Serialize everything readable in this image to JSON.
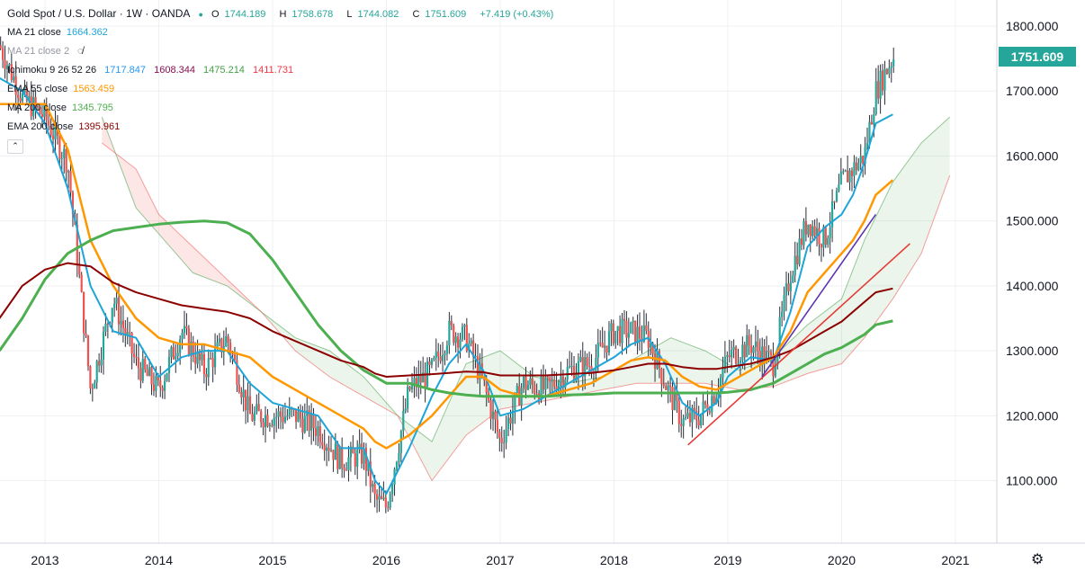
{
  "header": {
    "symbol_title": "Gold Spot / U.S. Dollar · 1W · OANDA",
    "ohlc": {
      "open_label": "O",
      "open": "1744.189",
      "high_label": "H",
      "high": "1758.678",
      "low_label": "L",
      "low": "1744.082",
      "close_label": "C",
      "close": "1751.609",
      "change": "+7.419 (+0.43%)"
    }
  },
  "indicators": [
    {
      "label": "MA 21 close",
      "values": [
        "1664.362"
      ],
      "colors": [
        "#1ca5d8"
      ]
    },
    {
      "label": "MA 21 close 2",
      "values": [],
      "colors": []
    },
    {
      "label": "Ichimoku 9 26 52 26",
      "values": [
        "1717.847",
        "1608.344",
        "1475.214",
        "1411.731"
      ],
      "colors": [
        "#2196f3",
        "#880e4f",
        "#43a047",
        "#f23645"
      ]
    },
    {
      "label": "EMA 55 close",
      "values": [
        "1563.459"
      ],
      "colors": [
        "#ff9800"
      ]
    },
    {
      "label": "MA 200 close",
      "values": [
        "1345.795"
      ],
      "colors": [
        "#4caf50"
      ]
    },
    {
      "label": "EMA 200 close",
      "values": [
        "1395.961"
      ],
      "colors": [
        "#8b0000"
      ]
    }
  ],
  "last_price_tag": "1751.609",
  "icons": {
    "settings": "gear-icon",
    "visibility": "eye-off-icon"
  },
  "chart_data": {
    "type": "line",
    "title": "Gold Spot / U.S. Dollar · 1W · OANDA",
    "xlabel": "",
    "ylabel": "",
    "ylim": [
      975,
      1830
    ],
    "x_ticks": [
      "2013",
      "2014",
      "2015",
      "2016",
      "2017",
      "2018",
      "2019",
      "2020",
      "2021"
    ],
    "y_ticks": [
      "1100.000",
      "1200.000",
      "1300.000",
      "1400.000",
      "1500.000",
      "1600.000",
      "1700.000",
      "1800.000"
    ],
    "grid": true,
    "colors": {
      "up": "#26a69a",
      "down": "#ef5350",
      "ma21": "#1ca5d8",
      "ema55": "#ff9800",
      "ma200": "#4caf50",
      "ema200": "#8b0000",
      "trend_red": "#e53935",
      "trend_purple": "#5e35b1",
      "cloud_green": "#43a047",
      "cloud_red": "#ef5350"
    },
    "x": [
      2012.6,
      2012.8,
      2013.0,
      2013.2,
      2013.4,
      2013.6,
      2013.8,
      2014.0,
      2014.2,
      2014.4,
      2014.6,
      2014.8,
      2015.0,
      2015.2,
      2015.4,
      2015.6,
      2015.8,
      2015.9,
      2016.0,
      2016.2,
      2016.4,
      2016.55,
      2016.7,
      2016.85,
      2017.0,
      2017.2,
      2017.4,
      2017.6,
      2017.8,
      2018.0,
      2018.15,
      2018.3,
      2018.45,
      2018.6,
      2018.75,
      2018.9,
      2019.0,
      2019.2,
      2019.4,
      2019.55,
      2019.7,
      2019.85,
      2020.0,
      2020.1,
      2020.2,
      2020.3,
      2020.45
    ],
    "series": [
      {
        "name": "Price",
        "values": [
          1770,
          1690,
          1660,
          1590,
          1240,
          1380,
          1280,
          1240,
          1330,
          1270,
          1320,
          1200,
          1200,
          1200,
          1180,
          1130,
          1140,
          1070,
          1060,
          1240,
          1270,
          1330,
          1320,
          1250,
          1160,
          1250,
          1240,
          1270,
          1280,
          1330,
          1330,
          1320,
          1250,
          1190,
          1200,
          1240,
          1290,
          1310,
          1280,
          1420,
          1500,
          1470,
          1560,
          1580,
          1600,
          1700,
          1752
        ]
      },
      {
        "name": "MA 21 close",
        "values": [
          1720,
          1700,
          1650,
          1550,
          1400,
          1330,
          1320,
          1260,
          1290,
          1300,
          1300,
          1250,
          1220,
          1210,
          1200,
          1150,
          1150,
          1100,
          1080,
          1150,
          1230,
          1280,
          1310,
          1270,
          1200,
          1210,
          1230,
          1250,
          1270,
          1290,
          1310,
          1320,
          1280,
          1220,
          1200,
          1220,
          1260,
          1290,
          1285,
          1360,
          1460,
          1490,
          1510,
          1540,
          1590,
          1650,
          1664
        ]
      },
      {
        "name": "EMA 55 close",
        "values": [
          1680,
          1680,
          1680,
          1610,
          1470,
          1400,
          1350,
          1320,
          1310,
          1310,
          1300,
          1290,
          1260,
          1240,
          1220,
          1200,
          1180,
          1160,
          1150,
          1170,
          1200,
          1230,
          1260,
          1260,
          1240,
          1230,
          1230,
          1240,
          1250,
          1270,
          1285,
          1290,
          1285,
          1260,
          1245,
          1240,
          1250,
          1270,
          1290,
          1330,
          1390,
          1420,
          1450,
          1470,
          1500,
          1540,
          1563
        ]
      },
      {
        "name": "MA 200 close",
        "values": [
          1300,
          1350,
          1410,
          1450,
          1470,
          1485,
          1490,
          1495,
          1498,
          1500,
          1497,
          1480,
          1440,
          1390,
          1340,
          1300,
          1270,
          1260,
          1250,
          1250,
          1240,
          1235,
          1232,
          1230,
          1230,
          1230,
          1230,
          1232,
          1233,
          1235,
          1235,
          1235,
          1235,
          1235,
          1235,
          1235,
          1236,
          1240,
          1250,
          1265,
          1280,
          1295,
          1305,
          1315,
          1325,
          1340,
          1346
        ]
      },
      {
        "name": "EMA 200 close",
        "values": [
          1350,
          1400,
          1425,
          1435,
          1430,
          1405,
          1390,
          1380,
          1370,
          1365,
          1360,
          1350,
          1330,
          1315,
          1300,
          1285,
          1275,
          1265,
          1260,
          1262,
          1264,
          1266,
          1268,
          1267,
          1262,
          1262,
          1262,
          1264,
          1266,
          1270,
          1275,
          1280,
          1280,
          1275,
          1272,
          1272,
          1275,
          1280,
          1290,
          1300,
          1315,
          1330,
          1345,
          1360,
          1375,
          1390,
          1396
        ]
      }
    ],
    "cloud": {
      "x": [
        2013.5,
        2013.8,
        2014.0,
        2014.3,
        2014.6,
        2014.9,
        2015.2,
        2015.5,
        2015.8,
        2016.1,
        2016.4,
        2016.7,
        2017.0,
        2017.3,
        2017.6,
        2017.9,
        2018.2,
        2018.5,
        2018.8,
        2019.1,
        2019.4,
        2019.7,
        2020.0,
        2020.2,
        2020.45,
        2020.7,
        2020.95
      ],
      "span_a": [
        1660,
        1520,
        1480,
        1420,
        1400,
        1360,
        1320,
        1300,
        1260,
        1200,
        1160,
        1280,
        1300,
        1260,
        1250,
        1260,
        1290,
        1320,
        1300,
        1270,
        1290,
        1340,
        1380,
        1470,
        1560,
        1620,
        1660
      ],
      "span_b": [
        1620,
        1580,
        1510,
        1460,
        1410,
        1360,
        1300,
        1260,
        1230,
        1200,
        1100,
        1170,
        1210,
        1220,
        1230,
        1240,
        1250,
        1250,
        1250,
        1240,
        1245,
        1265,
        1280,
        1320,
        1380,
        1450,
        1570
      ]
    },
    "trend_lines": [
      {
        "name": "support",
        "x": [
          2018.65,
          2020.6
        ],
        "y": [
          1155,
          1465
        ],
        "color": "#e53935"
      },
      {
        "name": "support-2",
        "x": [
          2019.3,
          2020.3
        ],
        "y": [
          1260,
          1510
        ],
        "color": "#5e35b1"
      }
    ]
  }
}
